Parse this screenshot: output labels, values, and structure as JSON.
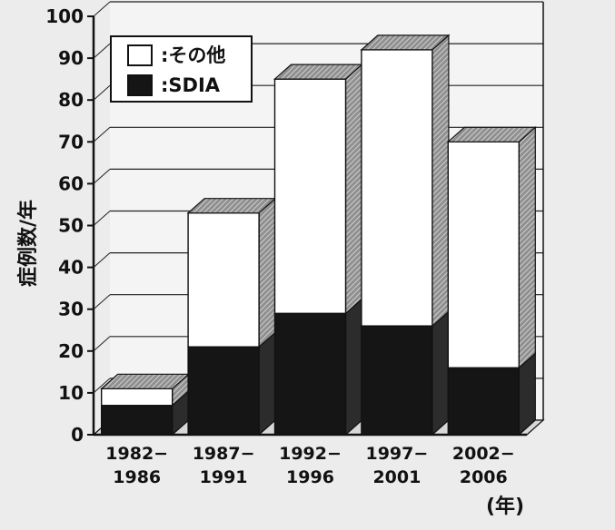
{
  "chart_data": {
    "type": "bar",
    "stacked": true,
    "three_d": true,
    "categories": [
      "1982−\n1986",
      "1987−\n1991",
      "1992−\n1996",
      "1997−\n2001",
      "2002−\n2006"
    ],
    "series": [
      {
        "name": ":SDIA",
        "values": [
          7,
          21,
          29,
          26,
          16
        ],
        "color": "#151515"
      },
      {
        "name": ":その他",
        "values": [
          4,
          32,
          56,
          66,
          54
        ],
        "color": "#ffffff"
      }
    ],
    "ylabel": "症例数/年",
    "xunit": "(年)",
    "ylim": [
      0,
      100
    ],
    "yticks": [
      0,
      10,
      20,
      30,
      40,
      50,
      60,
      70,
      80,
      90,
      100
    ],
    "grid": true,
    "legend_position": "top-left"
  }
}
